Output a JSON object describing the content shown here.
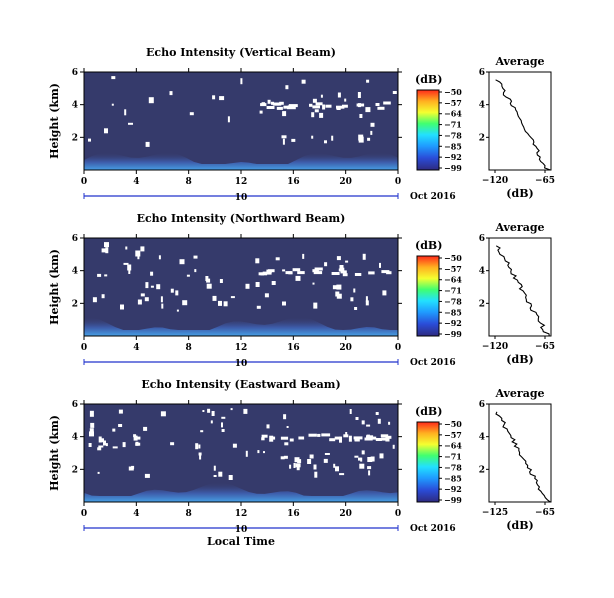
{
  "chart_data": [
    {
      "type": "heatmap",
      "title": "Echo Intensity (Vertical Beam)",
      "ylabel": "Height (km)",
      "yticks": [
        "2",
        "4",
        "6"
      ],
      "ylim": [
        0,
        6
      ],
      "xticks": [
        "0",
        "4",
        "8",
        "12",
        "16",
        "20",
        "0"
      ],
      "xlim": [
        0,
        24
      ],
      "date_label": "10",
      "month_year_label": "Oct 2016",
      "colorbar_unit": "(dB)",
      "colorbar_ticks": [
        "−50",
        "−57",
        "−64",
        "−71",
        "−78",
        "−85",
        "−92",
        "−99"
      ],
      "average": {
        "title": "Average",
        "xticks": [
          "−120",
          "−65"
        ],
        "xlabel": "(dB)",
        "yticks": [
          "2",
          "4",
          "6"
        ]
      }
    },
    {
      "type": "heatmap",
      "title": "Echo Intensity (Northward Beam)",
      "ylabel": "Height (km)",
      "yticks": [
        "2",
        "4",
        "6"
      ],
      "ylim": [
        0,
        6
      ],
      "xticks": [
        "0",
        "4",
        "8",
        "12",
        "16",
        "20",
        "0"
      ],
      "xlim": [
        0,
        24
      ],
      "date_label": "10",
      "month_year_label": "Oct 2016",
      "colorbar_unit": "(dB)",
      "colorbar_ticks": [
        "−50",
        "−57",
        "−64",
        "−71",
        "−78",
        "−85",
        "−92",
        "−99"
      ],
      "average": {
        "title": "Average",
        "xticks": [
          "−120",
          "−65"
        ],
        "xlabel": "(dB)",
        "yticks": [
          "2",
          "4",
          "6"
        ]
      }
    },
    {
      "type": "heatmap",
      "title": "Echo Intensity (Eastward Beam)",
      "ylabel": "Height (km)",
      "yticks": [
        "2",
        "4",
        "6"
      ],
      "ylim": [
        0,
        6
      ],
      "xticks": [
        "0",
        "4",
        "8",
        "12",
        "16",
        "20",
        "0"
      ],
      "xlim": [
        0,
        24
      ],
      "date_label": "10",
      "month_year_label": "Oct 2016",
      "xlabel": "Local Time",
      "colorbar_unit": "(dB)",
      "colorbar_ticks": [
        "−50",
        "−57",
        "−64",
        "−71",
        "−78",
        "−85",
        "−92",
        "−99"
      ],
      "average": {
        "title": "Average",
        "xticks": [
          "−125",
          "−65"
        ],
        "xlabel": "(dB)",
        "yticks": [
          "2",
          "4",
          "6"
        ]
      }
    }
  ],
  "colors": {
    "background_field": "#353a6b",
    "colorbar_stops": [
      "#ff2a1a",
      "#ffb020",
      "#f4ff30",
      "#40ff70",
      "#22e0ff",
      "#1f9cff",
      "#2a4cd8",
      "#2e2a80"
    ],
    "date_line": "#2233cc"
  }
}
